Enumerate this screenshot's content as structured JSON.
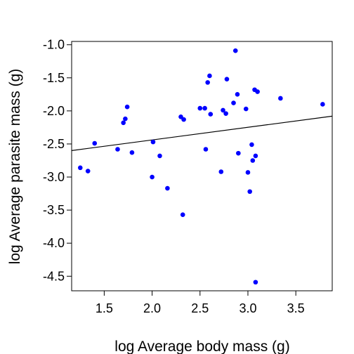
{
  "chart_data": {
    "type": "scatter",
    "title": "",
    "xlabel": "log Average body mass (g)",
    "ylabel": "log Average parasite mass (g)",
    "xlim": [
      1.16,
      3.88
    ],
    "ylim": [
      -4.72,
      -0.95
    ],
    "xticks": [
      1.5,
      2.0,
      2.5,
      3.0,
      3.5
    ],
    "xtick_labels": [
      "1.5",
      "2.0",
      "2.5",
      "3.0",
      "3.5"
    ],
    "yticks": [
      -1.0,
      -1.5,
      -2.0,
      -2.5,
      -3.0,
      -3.5,
      -4.0,
      -4.5
    ],
    "ytick_labels": [
      "-1.0",
      "-1.5",
      "-2.0",
      "-2.5",
      "-3.0",
      "-3.5",
      "-4.0",
      "-4.5"
    ],
    "grid": false,
    "point_color": "#0000ff",
    "line_color": "#000000",
    "regression_line": {
      "x": [
        1.16,
        3.88
      ],
      "y": [
        -2.6,
        -2.08
      ]
    },
    "points": [
      {
        "x": 1.25,
        "y": -2.86
      },
      {
        "x": 1.33,
        "y": -2.91
      },
      {
        "x": 1.4,
        "y": -2.49
      },
      {
        "x": 1.64,
        "y": -2.58
      },
      {
        "x": 1.7,
        "y": -2.18
      },
      {
        "x": 1.72,
        "y": -2.12
      },
      {
        "x": 1.74,
        "y": -1.94
      },
      {
        "x": 1.79,
        "y": -2.63
      },
      {
        "x": 2.0,
        "y": -3.0
      },
      {
        "x": 2.01,
        "y": -2.47
      },
      {
        "x": 2.08,
        "y": -2.68
      },
      {
        "x": 2.16,
        "y": -3.17
      },
      {
        "x": 2.3,
        "y": -2.09
      },
      {
        "x": 2.32,
        "y": -3.57
      },
      {
        "x": 2.33,
        "y": -2.13
      },
      {
        "x": 2.5,
        "y": -1.96
      },
      {
        "x": 2.55,
        "y": -1.96
      },
      {
        "x": 2.56,
        "y": -2.58
      },
      {
        "x": 2.58,
        "y": -1.57
      },
      {
        "x": 2.6,
        "y": -1.47
      },
      {
        "x": 2.61,
        "y": -2.05
      },
      {
        "x": 2.72,
        "y": -2.92
      },
      {
        "x": 2.74,
        "y": -1.99
      },
      {
        "x": 2.77,
        "y": -2.04
      },
      {
        "x": 2.78,
        "y": -1.52
      },
      {
        "x": 2.85,
        "y": -1.88
      },
      {
        "x": 2.87,
        "y": -1.09
      },
      {
        "x": 2.89,
        "y": -1.75
      },
      {
        "x": 2.9,
        "y": -2.64
      },
      {
        "x": 2.98,
        "y": -1.97
      },
      {
        "x": 3.0,
        "y": -2.93
      },
      {
        "x": 3.02,
        "y": -3.22
      },
      {
        "x": 3.04,
        "y": -2.51
      },
      {
        "x": 3.05,
        "y": -2.75
      },
      {
        "x": 3.07,
        "y": -1.68
      },
      {
        "x": 3.08,
        "y": -2.68
      },
      {
        "x": 3.08,
        "y": -4.59
      },
      {
        "x": 3.1,
        "y": -1.71
      },
      {
        "x": 3.34,
        "y": -1.81
      },
      {
        "x": 3.78,
        "y": -1.9
      }
    ]
  }
}
